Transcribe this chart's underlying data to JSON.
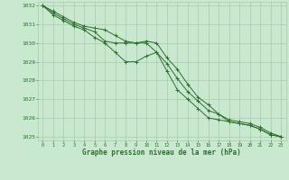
{
  "x": [
    0,
    1,
    2,
    3,
    4,
    5,
    6,
    7,
    8,
    9,
    10,
    11,
    12,
    13,
    14,
    15,
    16,
    17,
    18,
    19,
    20,
    21,
    22,
    23
  ],
  "line1": [
    1032.0,
    1031.7,
    1031.4,
    1031.1,
    1030.9,
    1030.8,
    1030.7,
    1030.4,
    1030.1,
    1030.0,
    1030.1,
    1030.0,
    1029.2,
    1028.6,
    1027.8,
    1027.1,
    1026.7,
    1026.2,
    1025.8,
    1025.7,
    1025.6,
    1025.4,
    1025.1,
    1025.0
  ],
  "line2": [
    1032.0,
    1031.6,
    1031.3,
    1031.0,
    1030.8,
    1030.6,
    1030.1,
    1030.0,
    1030.0,
    1030.0,
    1030.0,
    1029.5,
    1028.9,
    1028.1,
    1027.4,
    1026.9,
    1026.4,
    1026.2,
    1025.9,
    1025.8,
    1025.7,
    1025.5,
    1025.2,
    1025.0
  ],
  "line3": [
    1032.0,
    1031.5,
    1031.2,
    1030.9,
    1030.7,
    1030.3,
    1030.0,
    1029.5,
    1029.0,
    1029.0,
    1029.3,
    1029.5,
    1028.5,
    1027.5,
    1027.0,
    1026.5,
    1026.0,
    1025.9,
    1025.8,
    1025.7,
    1025.6,
    1025.4,
    1025.1,
    1025.0
  ],
  "line_color": "#2d6e2d",
  "marker_color": "#2d6e2d",
  "bg_color": "#c8e8d0",
  "grid_color": "#aacaaa",
  "axis_label_color": "#2d6e2d",
  "ylabel_min": 1025,
  "ylabel_max": 1032,
  "xlabel_label": "Graphe pression niveau de la mer (hPa)",
  "x_ticks": [
    0,
    1,
    2,
    3,
    4,
    5,
    6,
    7,
    8,
    9,
    10,
    11,
    12,
    13,
    14,
    15,
    16,
    17,
    18,
    19,
    20,
    21,
    22,
    23
  ]
}
